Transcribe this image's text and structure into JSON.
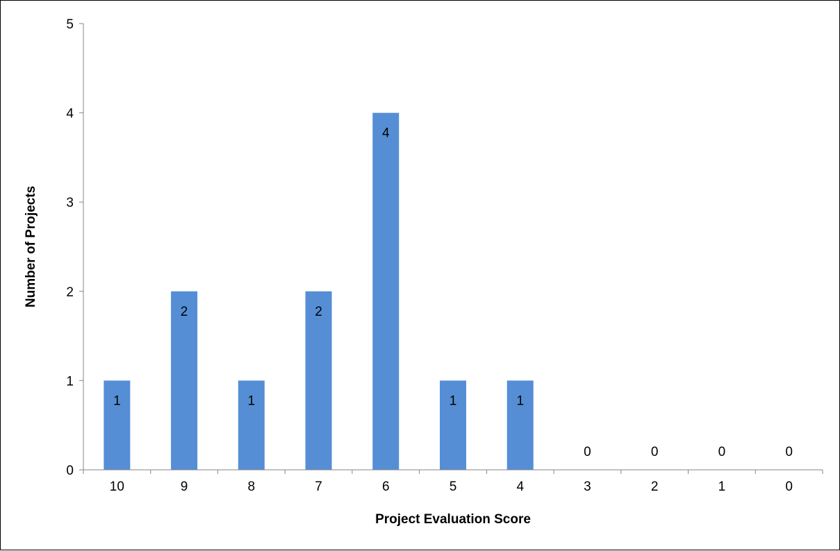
{
  "chart_data": {
    "type": "bar",
    "categories": [
      "10",
      "9",
      "8",
      "7",
      "6",
      "5",
      "4",
      "3",
      "2",
      "1",
      "0"
    ],
    "values": [
      1,
      2,
      1,
      2,
      4,
      1,
      1,
      0,
      0,
      0,
      0
    ],
    "data_labels": [
      "1",
      "2",
      "1",
      "2",
      "4",
      "1",
      "1",
      "0",
      "0",
      "0",
      "0"
    ],
    "title": "",
    "xlabel": "Project Evaluation Score",
    "ylabel": "Number of Projects",
    "ylim": [
      0,
      5
    ],
    "yticks": [
      "0",
      "1",
      "2",
      "3",
      "4",
      "5"
    ],
    "grid": false,
    "legend": "none",
    "bar_color": "#558ED5"
  }
}
